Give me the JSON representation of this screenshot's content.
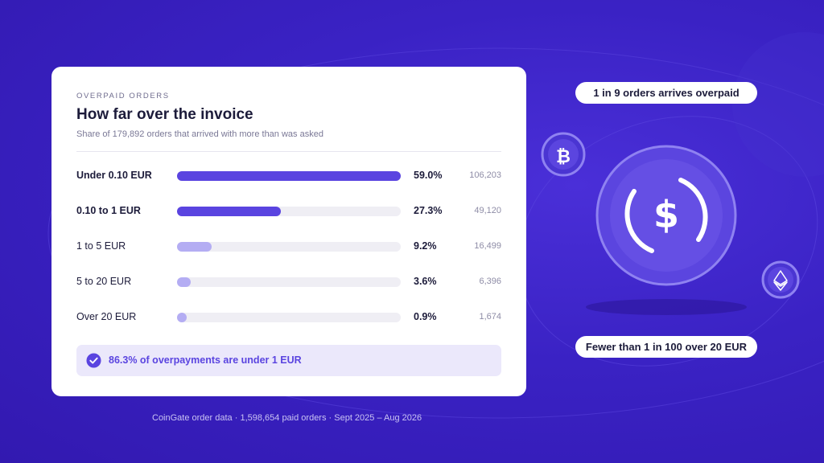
{
  "card": {
    "eyebrow": "OVERPAID ORDERS",
    "title": "How far over the invoice",
    "subtitle": "Share of 179,892 orders that arrived with more than was asked"
  },
  "chart_data": {
    "type": "bar",
    "orientation": "horizontal",
    "categories": [
      "Under 0.10 EUR",
      "0.10 to 1 EUR",
      "1 to 5 EUR",
      "5 to 20 EUR",
      "Over 20 EUR"
    ],
    "values": [
      59.0,
      27.3,
      9.2,
      3.6,
      0.9
    ],
    "value_labels": [
      "59.0%",
      "27.3%",
      "9.2%",
      "3.6%",
      "0.9%"
    ],
    "counts": [
      "106,203",
      "49,120",
      "16,499",
      "6,396",
      "1,674"
    ],
    "xlim": [
      0,
      59.0
    ],
    "colors": [
      "#5a44e0",
      "#5a44e0",
      "#b4adf3",
      "#b4adf3",
      "#b4adf3"
    ],
    "emphasized_categories": [
      "Under 0.10 EUR",
      "0.10 to 1 EUR"
    ],
    "grid": false
  },
  "callout": {
    "text": "86.3% of overpayments are under 1 EUR",
    "icon": "check-circle-icon"
  },
  "footnote": "CoinGate order data · 1,598,654 paid orders · Sept 2025 – Aug 2026",
  "illustration": {
    "top_pill": "1 in 9 orders arrives overpaid",
    "bottom_pill": "Fewer than 1 in 100 over 20 EUR",
    "main_coin_symbol": "$",
    "small_coins": [
      "bitcoin-icon",
      "ethereum-icon"
    ]
  }
}
